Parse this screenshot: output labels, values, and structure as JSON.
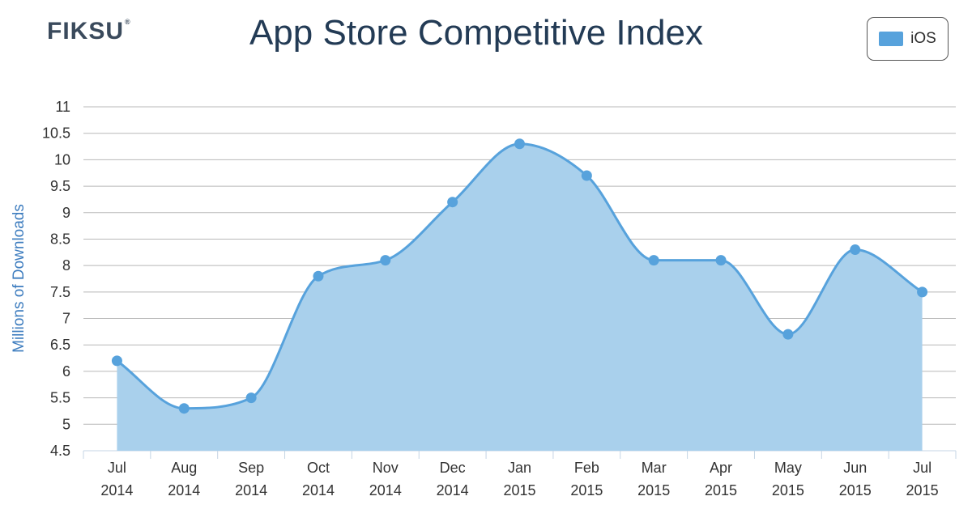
{
  "logo": "FIKSU",
  "header": {
    "title": "App Store Competitive Index"
  },
  "legend": {
    "label": "iOS",
    "color": "#57a2dc"
  },
  "chart_data": {
    "type": "area",
    "title": "App Store Competitive Index",
    "xlabel": "",
    "ylabel": "Millions of Downloads",
    "ylim": [
      4.5,
      11
    ],
    "yticks": [
      "4.5",
      "5",
      "5.5",
      "6",
      "6.5",
      "7",
      "7.5",
      "8",
      "8.5",
      "9",
      "9.5",
      "10",
      "10.5",
      "11"
    ],
    "categories": [
      [
        "Jul",
        "2014"
      ],
      [
        "Aug",
        "2014"
      ],
      [
        "Sep",
        "2014"
      ],
      [
        "Oct",
        "2014"
      ],
      [
        "Nov",
        "2014"
      ],
      [
        "Dec",
        "2014"
      ],
      [
        "Jan",
        "2015"
      ],
      [
        "Feb",
        "2015"
      ],
      [
        "Mar",
        "2015"
      ],
      [
        "Apr",
        "2015"
      ],
      [
        "May",
        "2015"
      ],
      [
        "Jun",
        "2015"
      ],
      [
        "Jul",
        "2015"
      ]
    ],
    "series": [
      {
        "name": "iOS",
        "color": "#57a2dc",
        "fill": "#a9d0ec",
        "values": [
          6.2,
          5.3,
          5.5,
          7.8,
          8.1,
          9.2,
          10.3,
          9.7,
          8.1,
          8.1,
          6.7,
          8.3,
          7.5
        ]
      }
    ],
    "grid": true,
    "legend_position": "top-right"
  }
}
